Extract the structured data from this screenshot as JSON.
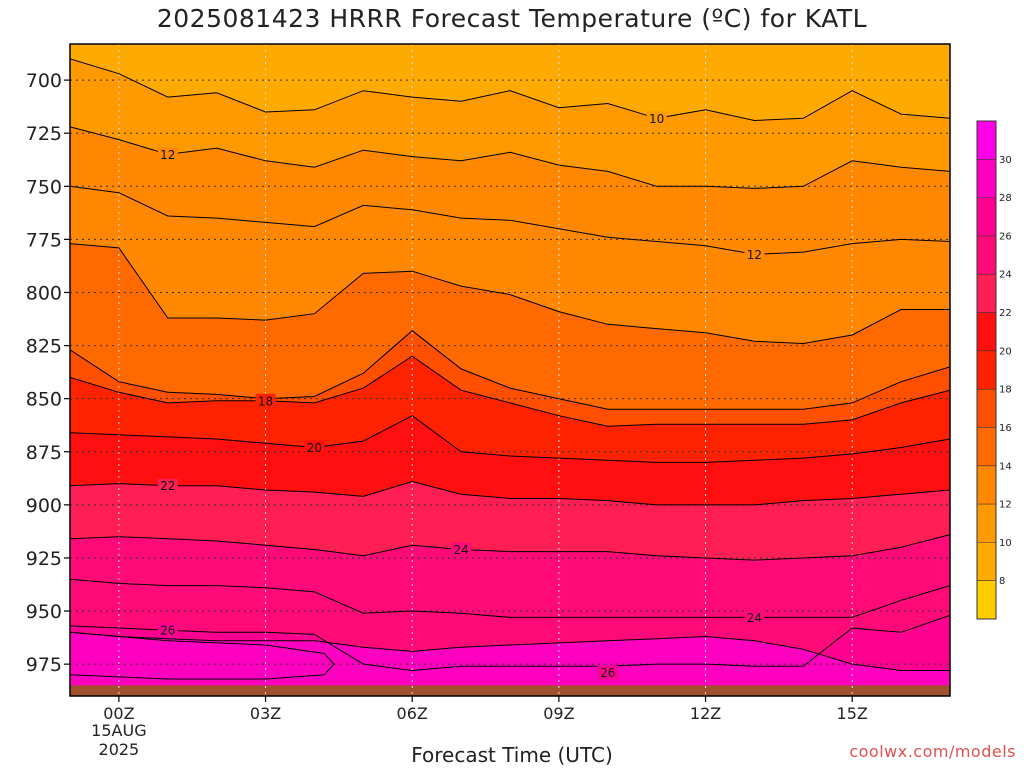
{
  "chart_data": {
    "type": "heatmap",
    "title": "2025081423 HRRR Forecast Temperature (ºC) for KATL",
    "xlabel": "Forecast Time (UTC)",
    "credit": "coolwx.com/models",
    "x_unit": "forecast hour since 2025-08-15 00Z",
    "xlim": [
      -1,
      17
    ],
    "x_ticks": [
      {
        "x": 0,
        "label": "00Z",
        "date_line1": "15AUG",
        "date_line2": "2025"
      },
      {
        "x": 3,
        "label": "03Z"
      },
      {
        "x": 6,
        "label": "06Z"
      },
      {
        "x": 9,
        "label": "09Z"
      },
      {
        "x": 12,
        "label": "12Z"
      },
      {
        "x": 15,
        "label": "15Z"
      }
    ],
    "y_axis": "pressure (hPa)",
    "ylim": [
      990,
      683
    ],
    "y_ticks": [
      700,
      725,
      750,
      775,
      800,
      825,
      850,
      875,
      900,
      925,
      950,
      975
    ],
    "surface_pressure": 985,
    "grid": true,
    "colorbar": {
      "min": 6,
      "max": 32,
      "step": 2,
      "tick_labels": [
        8,
        10,
        12,
        14,
        16,
        18,
        20,
        22,
        24,
        26,
        28,
        30
      ],
      "colors": [
        "#ffcc00",
        "#ffaa00",
        "#ff9900",
        "#ff8800",
        "#ff6a00",
        "#ff4f00",
        "#ff2200",
        "#ff0f0f",
        "#ff1f55",
        "#ff0a78",
        "#ff0090",
        "#ff00c0",
        "#ff00e8"
      ]
    },
    "isotherms": [
      {
        "value": 10,
        "label": "10",
        "label_x": 11,
        "x": [
          -1,
          0,
          1,
          2,
          3,
          4,
          5,
          6,
          7,
          8,
          9,
          10,
          11,
          12,
          13,
          14,
          15,
          16,
          17
        ],
        "p": [
          690,
          697,
          708,
          706,
          715,
          714,
          705,
          708,
          710,
          705,
          713,
          711,
          718,
          714,
          719,
          718,
          705,
          716,
          718
        ]
      },
      {
        "value": 12,
        "label": "12",
        "label_x": 1,
        "x": [
          -1,
          0,
          1,
          2,
          3,
          4,
          5,
          6,
          7,
          8,
          9,
          10,
          11,
          12,
          13,
          14,
          15,
          16,
          17
        ],
        "p": [
          722,
          728,
          735,
          732,
          738,
          741,
          733,
          736,
          738,
          734,
          740,
          743,
          750,
          750,
          751,
          750,
          738,
          741,
          743
        ]
      },
      {
        "value": 12,
        "label": "12",
        "label_x": 13,
        "x": [
          -1,
          0,
          1,
          2,
          3,
          4,
          5,
          6,
          7,
          8,
          9,
          10,
          11,
          12,
          13,
          14,
          15,
          16,
          17
        ],
        "p": [
          750,
          753,
          764,
          765,
          767,
          769,
          759,
          761,
          765,
          766,
          770,
          774,
          776,
          778,
          782,
          781,
          777,
          775,
          776
        ]
      },
      {
        "value": 14,
        "x": [
          -1,
          0,
          1,
          2,
          3,
          4,
          5,
          6,
          7,
          8,
          9,
          10,
          11,
          12,
          13,
          14,
          15,
          16,
          17
        ],
        "p": [
          777,
          779,
          812,
          812,
          813,
          810,
          791,
          790,
          797,
          801,
          809,
          815,
          817,
          819,
          823,
          824,
          820,
          808,
          808
        ]
      },
      {
        "value": 16,
        "x": [
          -1,
          0,
          1,
          2,
          3,
          4,
          5,
          6,
          7,
          8,
          9,
          10,
          11,
          12,
          13,
          14,
          15,
          16,
          17
        ],
        "p": [
          827,
          842,
          847,
          848,
          850,
          849,
          838,
          818,
          836,
          845,
          850,
          855,
          855,
          855,
          855,
          855,
          852,
          842,
          835
        ]
      },
      {
        "value": 18,
        "label": "18",
        "label_x": 3,
        "x": [
          -1,
          0,
          1,
          2,
          3,
          4,
          5,
          6,
          7,
          8,
          9,
          10,
          11,
          12,
          13,
          14,
          15,
          16,
          17
        ],
        "p": [
          840,
          847,
          852,
          851,
          851,
          852,
          845,
          830,
          846,
          852,
          858,
          863,
          862,
          862,
          862,
          862,
          860,
          852,
          846
        ]
      },
      {
        "value": 20,
        "label": "20",
        "label_x": 4,
        "x": [
          -1,
          0,
          1,
          2,
          3,
          4,
          5,
          6,
          7,
          8,
          9,
          10,
          11,
          12,
          13,
          14,
          15,
          16,
          17
        ],
        "p": [
          866,
          867,
          868,
          869,
          871,
          873,
          870,
          858,
          875,
          877,
          878,
          879,
          880,
          880,
          879,
          878,
          876,
          873,
          869
        ]
      },
      {
        "value": 22,
        "label": "22",
        "label_x": 1,
        "x": [
          -1,
          0,
          1,
          2,
          3,
          4,
          5,
          6,
          7,
          8,
          9,
          10,
          11,
          12,
          13,
          14,
          15,
          16,
          17
        ],
        "p": [
          891,
          890,
          891,
          891,
          893,
          894,
          896,
          889,
          895,
          897,
          897,
          898,
          900,
          900,
          900,
          898,
          897,
          895,
          893
        ]
      },
      {
        "value": 24,
        "label": "24",
        "label_x": 7,
        "x": [
          -1,
          0,
          1,
          2,
          3,
          4,
          5,
          6,
          7,
          8,
          9,
          10,
          11,
          12,
          13,
          14,
          15,
          16,
          17
        ],
        "p": [
          916,
          915,
          916,
          917,
          919,
          921,
          924,
          919,
          921,
          922,
          922,
          922,
          924,
          925,
          926,
          925,
          924,
          920,
          914
        ]
      },
      {
        "value": 24,
        "label": "24",
        "label_x": 13,
        "x": [
          -1,
          0,
          1,
          2,
          3,
          4,
          5,
          6,
          7,
          8,
          9,
          10,
          11,
          12,
          13,
          14,
          15,
          16,
          17
        ],
        "p": [
          935,
          937,
          938,
          938,
          939,
          941,
          951,
          950,
          951,
          953,
          953,
          953,
          953,
          953,
          953,
          953,
          953,
          945,
          938
        ]
      },
      {
        "value": 26,
        "label": "26",
        "label_x": 1,
        "x": [
          -1,
          0,
          1,
          2,
          3,
          4,
          5,
          6,
          7,
          8,
          9,
          10,
          11,
          12,
          13,
          14,
          15,
          16,
          17
        ],
        "p": [
          957,
          958,
          959,
          960,
          960,
          961,
          975,
          978,
          976,
          976,
          976,
          976,
          975,
          975,
          976,
          976,
          958,
          960,
          952
        ]
      },
      {
        "value": 28,
        "x": [
          -1,
          0,
          1,
          2,
          3,
          4,
          5,
          6,
          7,
          8,
          9,
          10,
          11,
          12,
          13,
          14,
          15,
          16,
          17
        ],
        "p": [
          960,
          962,
          963,
          964,
          964,
          964,
          967,
          969,
          967,
          966,
          965,
          964,
          963,
          962,
          964,
          968,
          975,
          978,
          978
        ]
      }
    ],
    "warm_pocket": {
      "value": 28,
      "x": [
        -1,
        0,
        1,
        2,
        3,
        4.2,
        4.4,
        4.2,
        3,
        2,
        1,
        0,
        -1
      ],
      "p": [
        960,
        962,
        964,
        965,
        966,
        970,
        975,
        980,
        982,
        982,
        982,
        981,
        980
      ]
    },
    "bottom_label": {
      "text": "26",
      "x": 10,
      "p": 979
    }
  }
}
